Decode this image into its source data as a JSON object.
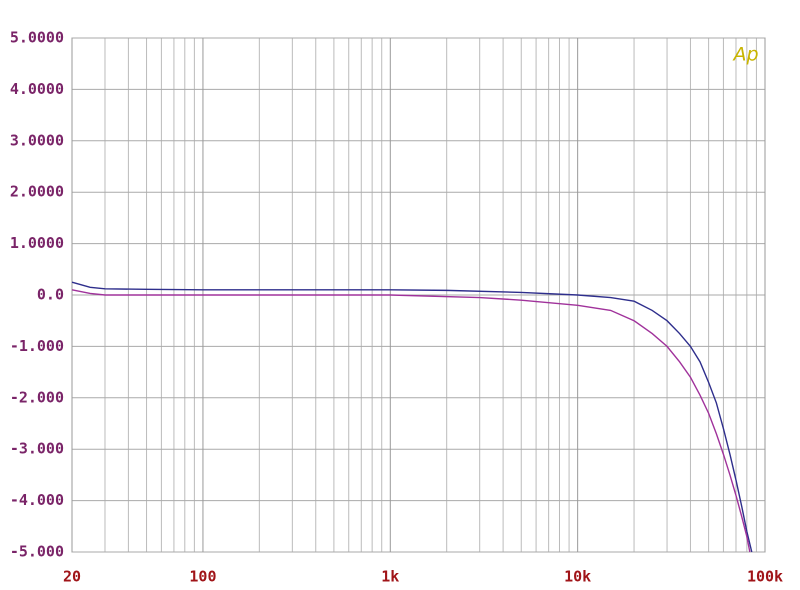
{
  "chart_data": {
    "type": "line",
    "logo": "Ap",
    "xscale": "log",
    "grid": true,
    "xlim": [
      20,
      100000
    ],
    "xticks": [
      20,
      100,
      {
        "value": 1000,
        "label": "1k"
      },
      {
        "value": 10000,
        "label": "10k"
      },
      {
        "value": 100000,
        "label": "100k"
      }
    ],
    "ylim": [
      -5,
      5
    ],
    "yticks": [
      {
        "value": 5,
        "label": "5.0000"
      },
      {
        "value": 4,
        "label": "4.0000"
      },
      {
        "value": 3,
        "label": "3.0000"
      },
      {
        "value": 2,
        "label": "2.0000"
      },
      {
        "value": 1,
        "label": "1.0000"
      },
      {
        "value": 0,
        "label": "0.0"
      },
      {
        "value": -1,
        "label": "-1.000"
      },
      {
        "value": -2,
        "label": "-2.000"
      },
      {
        "value": -3,
        "label": "-3.000"
      },
      {
        "value": -4,
        "label": "-4.000"
      },
      {
        "value": -5,
        "label": "-5.000"
      }
    ],
    "series": [
      {
        "color": "#2e2e8c",
        "x": [
          20,
          25,
          30,
          50,
          100,
          300,
          1000,
          2000,
          5000,
          10000,
          15000,
          20000,
          25000,
          30000,
          35000,
          40000,
          45000,
          50000,
          55000,
          60000,
          65000,
          70000,
          75000,
          80000,
          85000
        ],
        "values": [
          0.25,
          0.15,
          0.12,
          0.11,
          0.1,
          0.1,
          0.1,
          0.09,
          0.05,
          0.0,
          -0.05,
          -0.12,
          -0.3,
          -0.5,
          -0.75,
          -1.0,
          -1.3,
          -1.7,
          -2.1,
          -2.6,
          -3.1,
          -3.6,
          -4.1,
          -4.6,
          -5.0
        ]
      },
      {
        "color": "#a0329b",
        "x": [
          20,
          25,
          30,
          50,
          100,
          300,
          1000,
          3000,
          5000,
          10000,
          15000,
          20000,
          25000,
          30000,
          35000,
          40000,
          45000,
          50000,
          55000,
          60000,
          65000,
          70000,
          75000,
          80000,
          83000
        ],
        "values": [
          0.1,
          0.03,
          0.0,
          0.0,
          0.0,
          0.0,
          0.0,
          -0.05,
          -0.1,
          -0.2,
          -0.3,
          -0.5,
          -0.75,
          -1.0,
          -1.3,
          -1.6,
          -1.95,
          -2.3,
          -2.7,
          -3.1,
          -3.5,
          -3.9,
          -4.3,
          -4.7,
          -5.0
        ]
      }
    ]
  }
}
